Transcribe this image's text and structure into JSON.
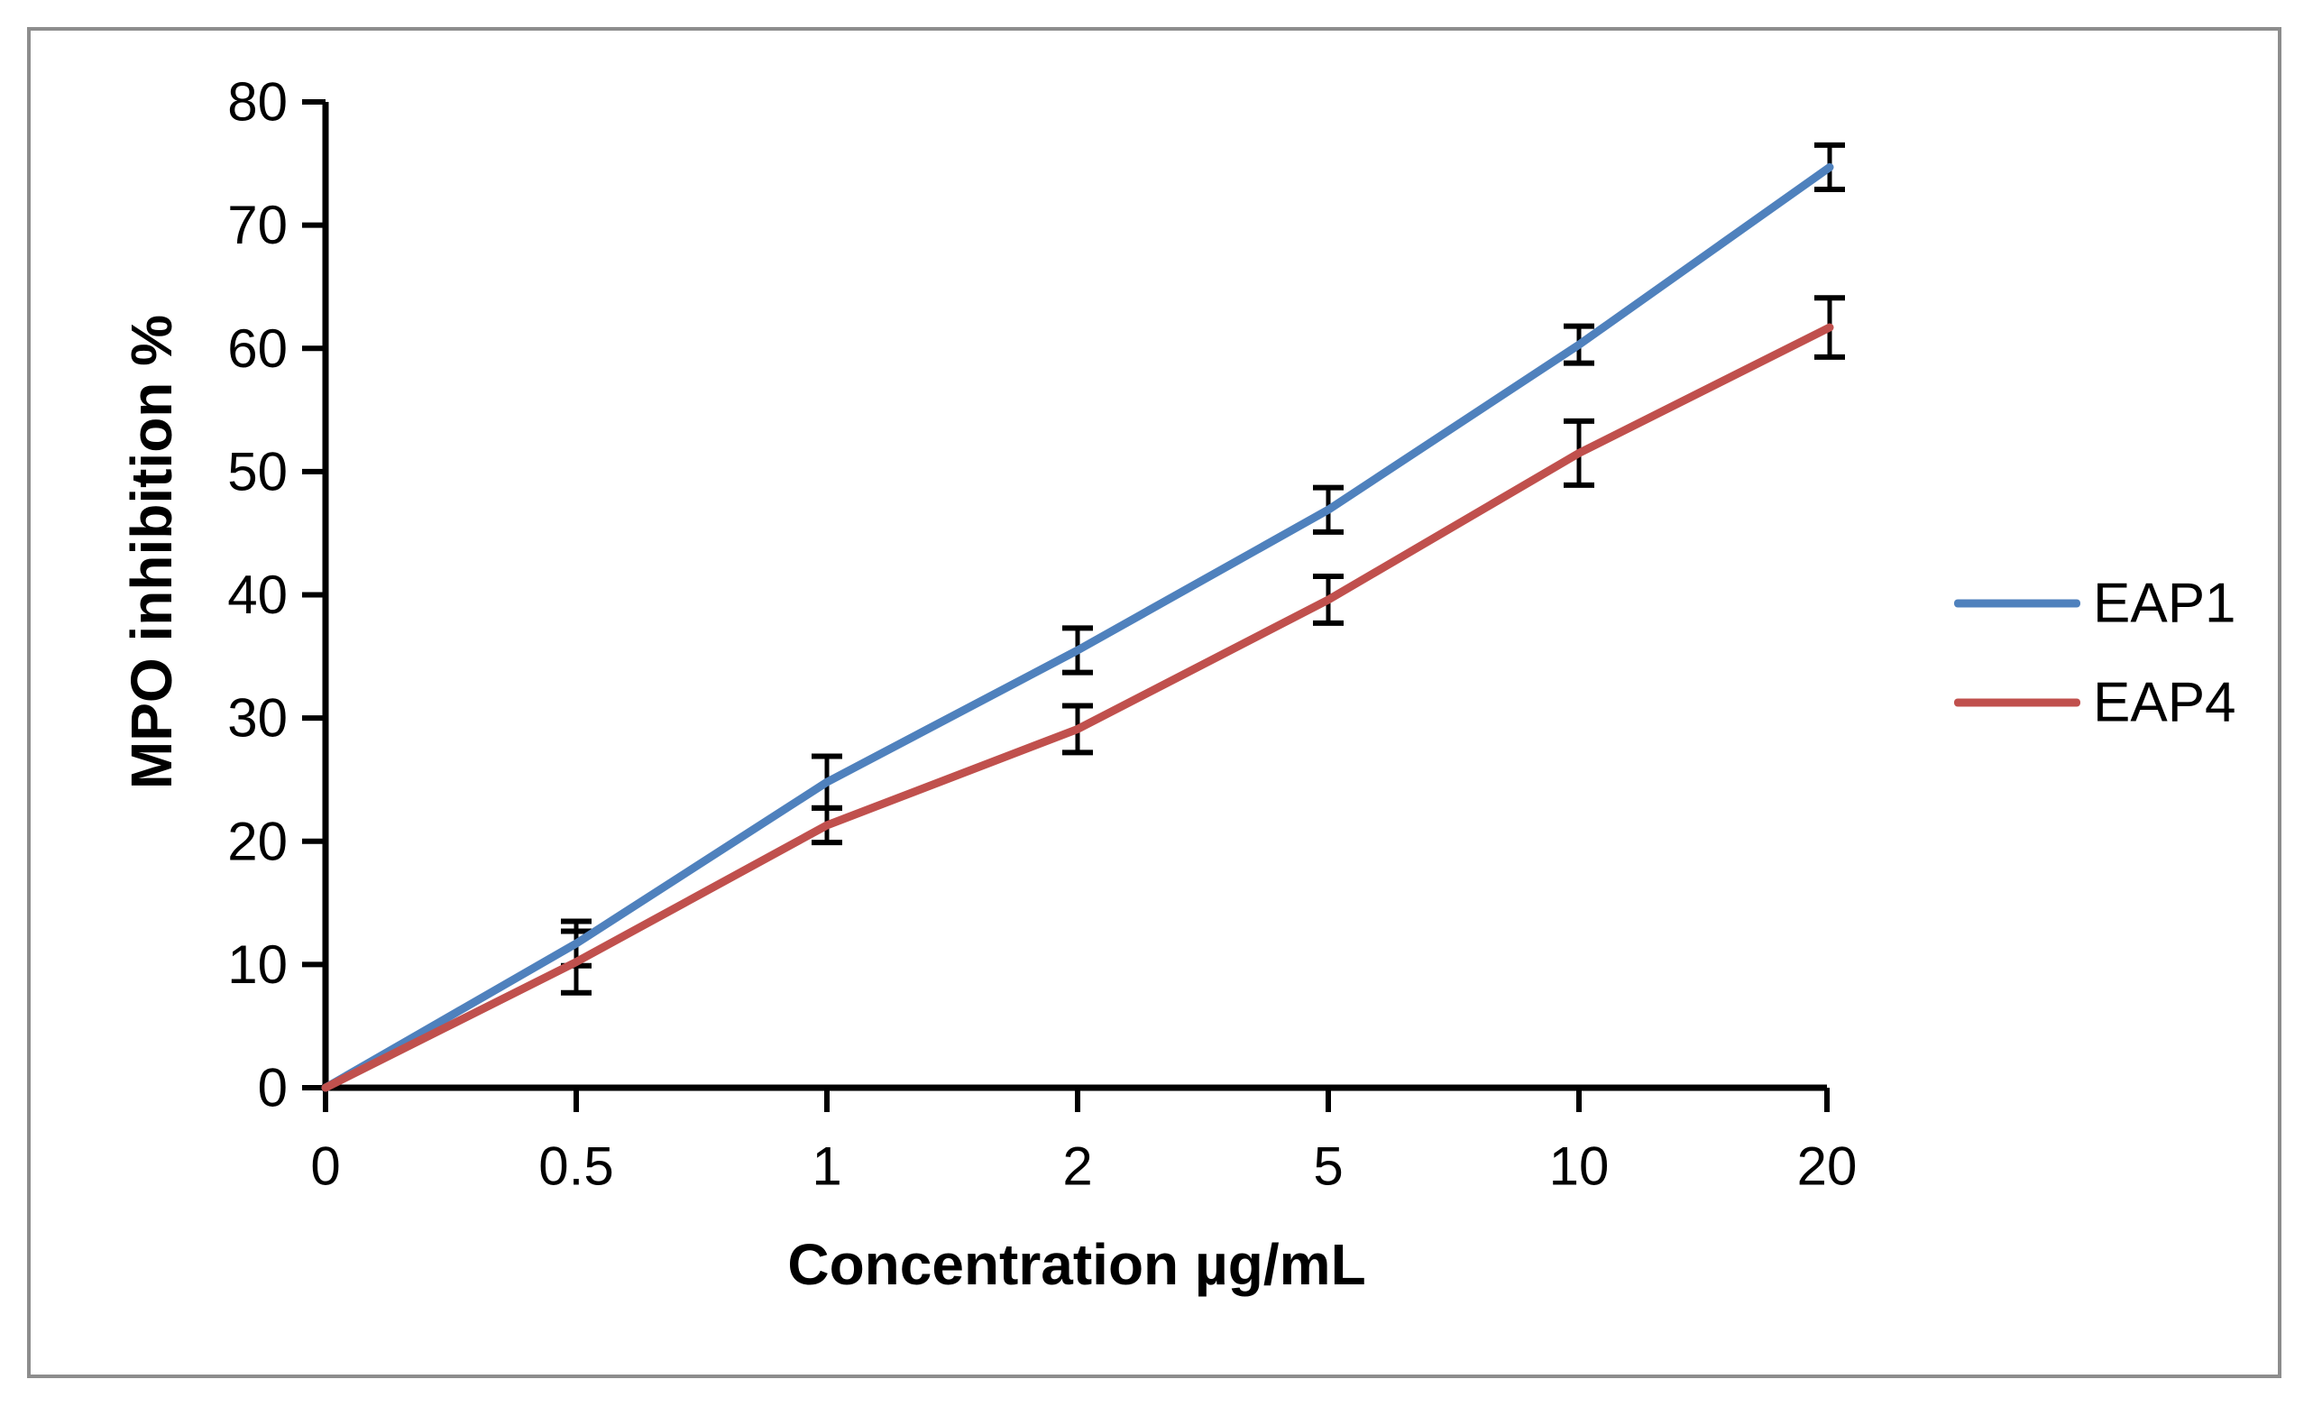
{
  "chart_data": {
    "type": "line",
    "title": "",
    "xlabel": "Concentration µg/mL",
    "ylabel": "MPO inhibition %",
    "x_axis": {
      "ticks": [
        "0",
        "0.5",
        "1",
        "2",
        "5",
        "10",
        "20"
      ]
    },
    "y_axis": {
      "ticks": [
        "0",
        "10",
        "20",
        "30",
        "40",
        "50",
        "60",
        "70",
        "80"
      ],
      "range": [
        0,
        80
      ]
    },
    "grid": "off",
    "legend_position": "right",
    "error_bar_color": "#000000",
    "axis_color": "#000000",
    "frame_border_color": "#8d8d8d",
    "series": [
      {
        "name": "EAP1",
        "color": "#4F81BD",
        "values": [
          0,
          11.7,
          24.8,
          35.5,
          46.9,
          60.3,
          74.7
        ],
        "errors": [
          0,
          1.8,
          2.1,
          1.8,
          1.8,
          1.5,
          1.8
        ]
      },
      {
        "name": "EAP4",
        "color": "#C0504D",
        "values": [
          0,
          10.2,
          21.3,
          29.1,
          39.6,
          51.5,
          61.7
        ],
        "errors": [
          0,
          2.5,
          1.4,
          1.9,
          1.9,
          2.6,
          2.4
        ]
      }
    ]
  }
}
